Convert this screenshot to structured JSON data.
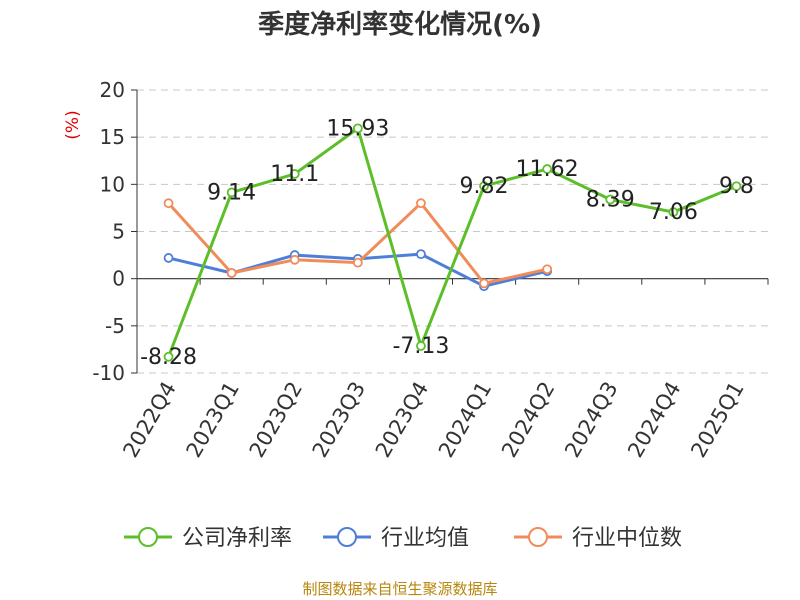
{
  "chart_data": {
    "type": "line",
    "title": "季度净利率变化情况(%)",
    "ylabel": "(%)",
    "xlabel": "",
    "categories": [
      "2022Q4",
      "2023Q1",
      "2023Q2",
      "2023Q3",
      "2023Q4",
      "2024Q1",
      "2024Q2",
      "2024Q3",
      "2024Q4",
      "2025Q1"
    ],
    "yticks": [
      "20",
      "15",
      "10",
      "5",
      "0",
      "-5",
      "-10"
    ],
    "ylim": [
      -10,
      20
    ],
    "grid": true,
    "legend_position": "bottom",
    "series": [
      {
        "name": "公司净利率",
        "color": "#5cbf29",
        "values": [
          -8.28,
          9.14,
          11.1,
          15.93,
          -7.13,
          9.82,
          11.62,
          8.39,
          7.06,
          9.8
        ],
        "labels": [
          "-8.28",
          "9.14",
          "11.1",
          "15.93",
          "-7.13",
          "9.82",
          "11.62",
          "8.39",
          "7.06",
          "9.8"
        ]
      },
      {
        "name": "行业均值",
        "color": "#4e7fd8",
        "values": [
          2.2,
          0.6,
          2.5,
          2.1,
          2.6,
          -0.8,
          0.8,
          null,
          null,
          null
        ]
      },
      {
        "name": "行业中位数",
        "color": "#f08c5a",
        "values": [
          8.0,
          0.6,
          2.0,
          1.7,
          8.0,
          -0.5,
          1.0,
          null,
          null,
          null
        ]
      }
    ]
  },
  "source_note": "制图数据来自恒生聚源数据库"
}
